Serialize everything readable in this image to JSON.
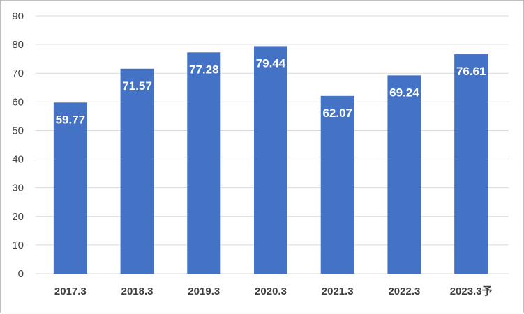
{
  "chart_data": {
    "type": "bar",
    "categories": [
      "2017.3",
      "2018.3",
      "2019.3",
      "2020.3",
      "2021.3",
      "2022.3",
      "2023.3予"
    ],
    "values": [
      59.77,
      71.57,
      77.28,
      79.44,
      62.07,
      69.24,
      76.61
    ],
    "value_labels": [
      "59.77",
      "71.57",
      "77.28",
      "79.44",
      "62.07",
      "69.24",
      "76.61"
    ],
    "title": "",
    "xlabel": "",
    "ylabel": "",
    "ylim": [
      0,
      90
    ],
    "yticks": [
      0,
      10,
      20,
      30,
      40,
      50,
      60,
      70,
      80,
      90
    ],
    "grid": true,
    "legend": "none",
    "bar_color": "#4472c4",
    "grid_color": "#d9d9d9",
    "label_color": "#ffffff"
  }
}
